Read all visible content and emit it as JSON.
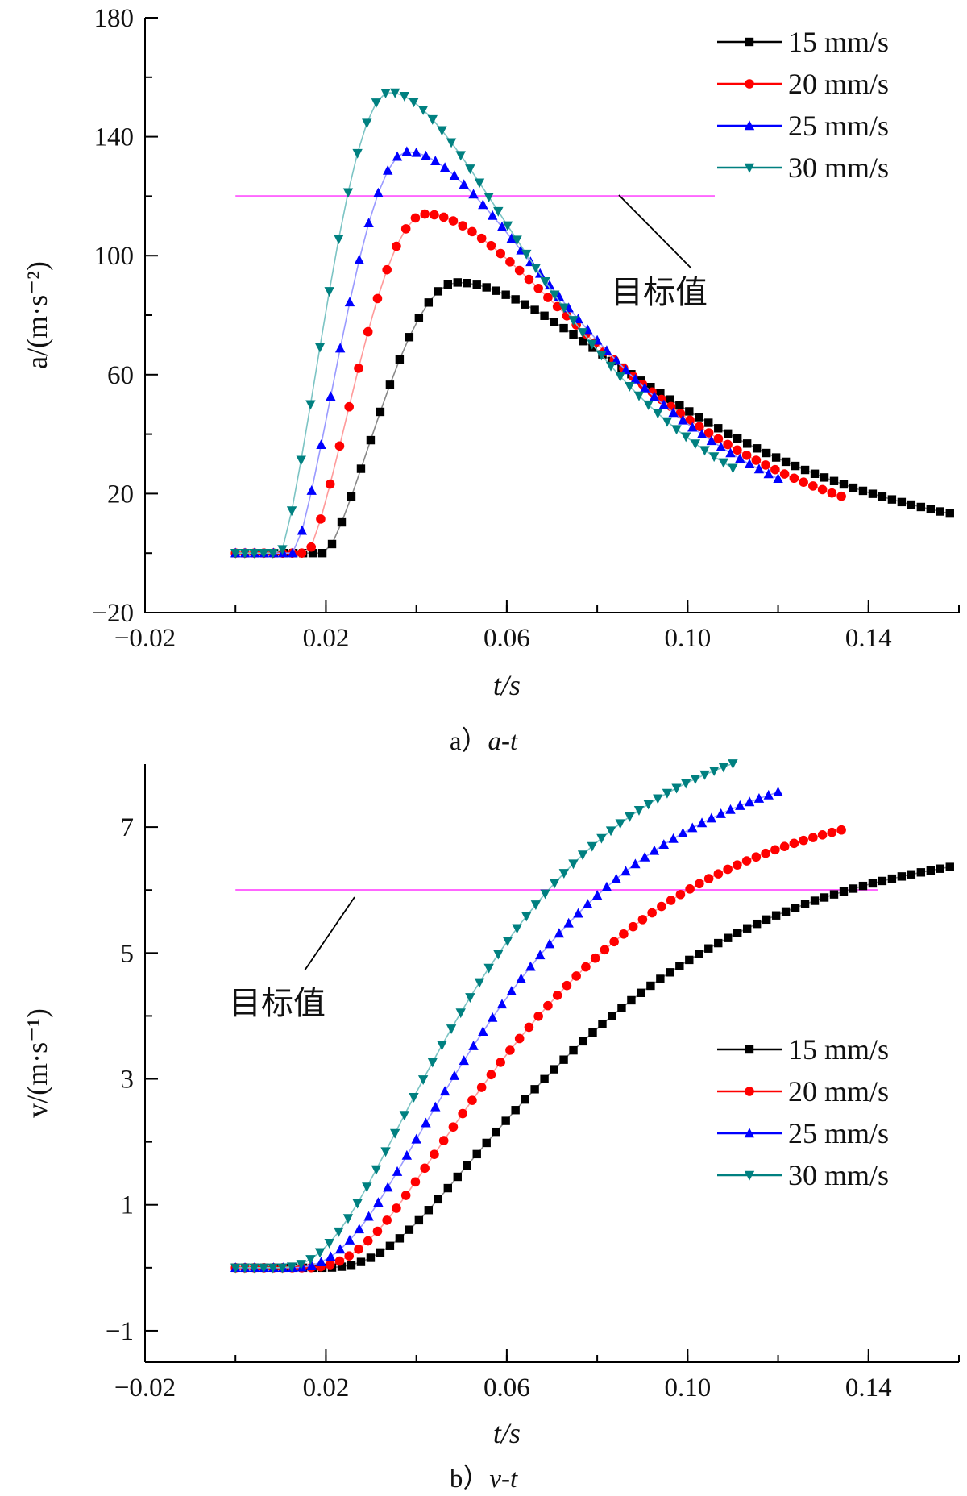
{
  "chart_data": [
    {
      "type": "line",
      "caption": "a）a-t",
      "caption_prefix": "a）",
      "caption_italic": "a-t",
      "xlabel": "t/s",
      "ylabel": "a/(m·s⁻²)",
      "xlim": [
        -0.02,
        0.16
      ],
      "ylim": [
        -20,
        180
      ],
      "xticks": [
        -0.02,
        0.02,
        0.06,
        0.1,
        0.14
      ],
      "xtick_labels": [
        "−0.02",
        "0.02",
        "0.06",
        "0.10",
        "0.14"
      ],
      "yticks": [
        -20,
        20,
        60,
        100,
        140,
        180
      ],
      "ytick_labels": [
        "−20",
        "20",
        "60",
        "100",
        "140",
        "180"
      ],
      "target": {
        "value": 120,
        "x_range": [
          0,
          0.106
        ],
        "label": "目标值",
        "color": "#ff66ff"
      },
      "legend_position": "top-right",
      "series": [
        {
          "name": "15 mm/s",
          "color": "#000000",
          "line_color": "#888888",
          "marker": "square",
          "onset": 0.02,
          "peak_t": 0.049,
          "peak": 91,
          "decay_tau": 0.032,
          "t_end": 0.158,
          "n": 75
        },
        {
          "name": "20 mm/s",
          "color": "#ff0000",
          "line_color": "#ff9a9a",
          "marker": "circle",
          "onset": 0.016,
          "peak_t": 0.042,
          "peak": 114,
          "decay_tau": 0.0285,
          "t_end": 0.134,
          "n": 65
        },
        {
          "name": "25 mm/s",
          "color": "#0000ff",
          "line_color": "#9a9aff",
          "marker": "triangle-up",
          "onset": 0.013,
          "peak_t": 0.038,
          "peak": 135,
          "decay_tau": 0.0265,
          "t_end": 0.12,
          "n": 58
        },
        {
          "name": "30 mm/s",
          "color": "#008080",
          "line_color": "#7cc4c4",
          "marker": "triangle-down",
          "onset": 0.01,
          "peak_t": 0.034,
          "peak": 155,
          "decay_tau": 0.0245,
          "t_end": 0.11,
          "n": 54
        }
      ]
    },
    {
      "type": "line",
      "caption": "b）v-t",
      "caption_prefix": "b）",
      "caption_italic": "v-t",
      "xlabel": "t/s",
      "ylabel": "v/(m·s⁻¹)",
      "xlim": [
        -0.02,
        0.16
      ],
      "ylim": [
        -1.5,
        8
      ],
      "xticks": [
        -0.02,
        0.02,
        0.06,
        0.1,
        0.14
      ],
      "xtick_labels": [
        "−0.02",
        "0.02",
        "0.06",
        "0.10",
        "0.14"
      ],
      "yticks": [
        -1,
        1,
        3,
        5,
        7
      ],
      "ytick_labels": [
        "−1",
        "1",
        "3",
        "5",
        "7"
      ],
      "target": {
        "value": 6.0,
        "x_range": [
          0,
          0.142
        ],
        "label": "目标值",
        "color": "#ff66ff"
      },
      "legend_position": "right",
      "series": [
        {
          "name": "15 mm/s",
          "color": "#000000",
          "line_color": "#888888",
          "marker": "square",
          "t_end": 0.158,
          "n": 75
        },
        {
          "name": "20 mm/s",
          "color": "#ff0000",
          "line_color": "#ff9a9a",
          "marker": "circle",
          "t_end": 0.134,
          "n": 65
        },
        {
          "name": "25 mm/s",
          "color": "#0000ff",
          "line_color": "#9a9aff",
          "marker": "triangle-up",
          "t_end": 0.12,
          "n": 58
        },
        {
          "name": "30 mm/s",
          "color": "#008080",
          "line_color": "#7cc4c4",
          "marker": "triangle-down",
          "t_end": 0.11,
          "n": 54
        }
      ]
    }
  ]
}
